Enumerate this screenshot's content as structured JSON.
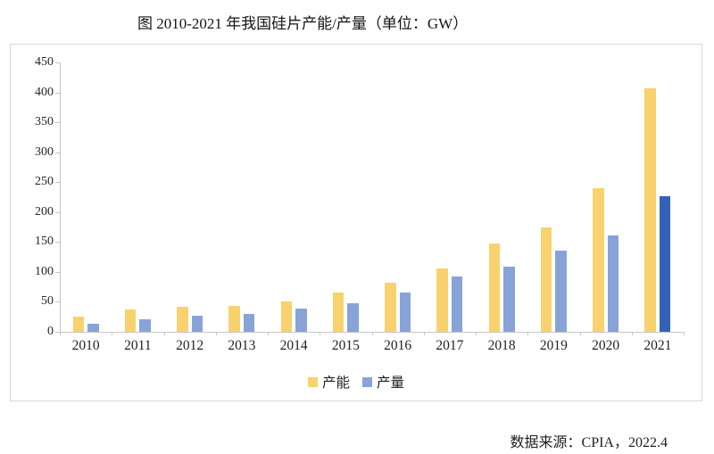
{
  "source": "数据来源：CPIA，2022.4",
  "colors": {
    "capacity_bar": "#f8d26e",
    "output_bar": "#87a3d8",
    "output_highlight_bar": "#3263b8",
    "axis": "#c6c6c6",
    "box_border": "#d9d9d9",
    "text": "#1f1f1f"
  },
  "chart_data": {
    "type": "bar",
    "title": "图 2010-2021 年我国硅片产能/产量（单位：GW）",
    "unit": "GW",
    "categories": [
      "2010",
      "2011",
      "2012",
      "2013",
      "2014",
      "2015",
      "2016",
      "2017",
      "2018",
      "2019",
      "2020",
      "2021"
    ],
    "series": [
      {
        "key": "capacity",
        "name": "产能",
        "color": "#f8d26e",
        "values": [
          25,
          37,
          42,
          43,
          51,
          65,
          82,
          106,
          147,
          174,
          240,
          407
        ]
      },
      {
        "key": "output",
        "name": "产量",
        "color": "#87a3d8",
        "values": [
          14,
          21,
          27,
          30,
          39,
          48,
          65,
          93,
          109,
          135,
          161,
          227
        ],
        "highlight": {
          "index": 11,
          "color": "#3263b8"
        }
      }
    ],
    "ylim": [
      0,
      450
    ],
    "ytick_step": 50,
    "grid": false,
    "legend_position": "bottom"
  }
}
